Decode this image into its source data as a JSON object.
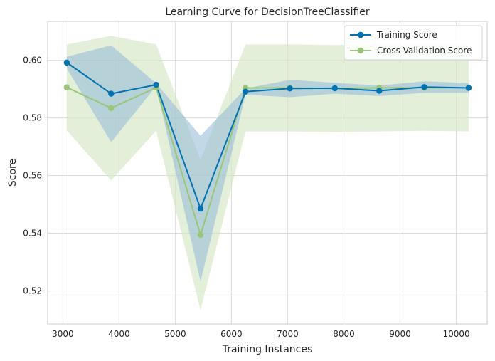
{
  "chart_data": {
    "type": "line",
    "title": "Learning Curve for DecisionTreeClassifier",
    "xlabel": "Training Instances",
    "ylabel": "Score",
    "xlim": [
      2730,
      10550
    ],
    "ylim": [
      0.5085,
      0.6135
    ],
    "xticks": [
      3000,
      4000,
      5000,
      6000,
      7000,
      8000,
      9000,
      10000
    ],
    "yticks": [
      0.52,
      0.54,
      0.56,
      0.58,
      0.6
    ],
    "xtick_labels": [
      "3000",
      "4000",
      "5000",
      "6000",
      "7000",
      "8000",
      "9000",
      "10000"
    ],
    "ytick_labels": [
      "0.52",
      "0.54",
      "0.56",
      "0.58",
      "0.60"
    ],
    "grid": true,
    "legend_position": "top-right",
    "x": [
      3070,
      3860,
      4660,
      5450,
      6250,
      7040,
      7840,
      8630,
      9430,
      10220
    ],
    "series": [
      {
        "name": "Training Score",
        "color": "#0072b2",
        "fill": "#8fb8d6",
        "values": [
          0.5992,
          0.5884,
          0.5915,
          0.5485,
          0.5891,
          0.5902,
          0.5903,
          0.5894,
          0.5907,
          0.5904
        ],
        "upper": [
          0.6012,
          0.6052,
          0.592,
          0.5738,
          0.5902,
          0.5932,
          0.5922,
          0.5912,
          0.5927,
          0.5921
        ],
        "lower": [
          0.5972,
          0.5716,
          0.591,
          0.5232,
          0.588,
          0.5872,
          0.5884,
          0.5876,
          0.5887,
          0.5887
        ]
      },
      {
        "name": "Cross Validation Score",
        "color": "#9bc578",
        "fill": "#d6e6c4",
        "values": [
          0.5906,
          0.5834,
          0.5905,
          0.5394,
          0.5904,
          0.5904,
          0.5902,
          0.5904,
          0.5905,
          0.5904
        ],
        "upper": [
          0.6055,
          0.6085,
          0.6055,
          0.5655,
          0.6055,
          0.6055,
          0.6053,
          0.6055,
          0.6055,
          0.6055
        ],
        "lower": [
          0.5757,
          0.5583,
          0.5755,
          0.5133,
          0.5753,
          0.5753,
          0.5751,
          0.5753,
          0.5755,
          0.5753
        ]
      }
    ]
  }
}
